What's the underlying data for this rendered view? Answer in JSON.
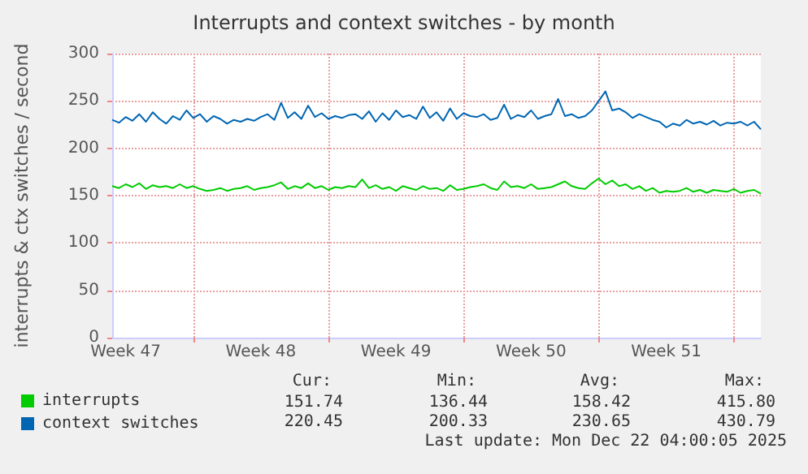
{
  "chart_data": {
    "type": "line",
    "title": "Interrupts and context switches - by month",
    "ylabel": "interrupts & ctx switches / second",
    "categories": [
      null,
      null,
      "Week 47",
      null,
      null,
      null,
      null,
      null,
      null,
      null,
      null,
      null,
      null,
      null,
      null,
      null,
      null,
      null,
      null,
      null,
      null,
      null,
      "Week 48",
      null,
      null,
      null,
      null,
      null,
      null,
      null,
      null,
      null,
      null,
      null,
      null,
      null,
      null,
      null,
      null,
      null,
      null,
      null,
      "Week 49",
      null,
      null,
      null,
      null,
      null,
      null,
      null,
      null,
      null,
      null,
      null,
      null,
      null,
      null,
      null,
      null,
      null,
      null,
      null,
      "Week 50",
      null,
      null,
      null,
      null,
      null,
      null,
      null,
      null,
      null,
      null,
      null,
      null,
      null,
      null,
      null,
      null,
      null,
      null,
      null,
      "Week 51",
      null,
      null,
      null,
      null,
      null,
      null,
      null,
      null,
      null,
      null,
      null,
      null,
      null,
      null
    ],
    "series": [
      {
        "name": "interrupts",
        "color": "#00cc00",
        "values": [
          160,
          158,
          162,
          159,
          163,
          157,
          161,
          159,
          160,
          158,
          162,
          158,
          160,
          157,
          155,
          156,
          158,
          155,
          157,
          158,
          160,
          156,
          158,
          159,
          161,
          164,
          157,
          160,
          158,
          163,
          158,
          160,
          156,
          159,
          158,
          160,
          159,
          167,
          158,
          161,
          157,
          159,
          155,
          160,
          158,
          156,
          160,
          157,
          158,
          155,
          161,
          156,
          157,
          159,
          160,
          162,
          158,
          156,
          165,
          159,
          160,
          158,
          162,
          157,
          158,
          159,
          162,
          165,
          160,
          158,
          157,
          163,
          168,
          162,
          166,
          160,
          162,
          157,
          160,
          155,
          158,
          153,
          155,
          154,
          155,
          158,
          154,
          156,
          153,
          156,
          155,
          154,
          157,
          153,
          155,
          156,
          152
        ]
      },
      {
        "name": "context switches",
        "color": "#0066b3",
        "values": [
          230,
          227,
          233,
          229,
          236,
          228,
          238,
          231,
          226,
          234,
          230,
          240,
          232,
          236,
          228,
          234,
          231,
          226,
          230,
          228,
          231,
          229,
          233,
          236,
          230,
          248,
          232,
          238,
          231,
          245,
          233,
          237,
          231,
          234,
          232,
          235,
          236,
          231,
          239,
          228,
          237,
          230,
          240,
          233,
          235,
          231,
          244,
          232,
          238,
          229,
          242,
          231,
          237,
          234,
          233,
          236,
          230,
          232,
          246,
          231,
          235,
          233,
          240,
          231,
          234,
          236,
          252,
          234,
          236,
          232,
          234,
          240,
          250,
          260,
          240,
          242,
          238,
          232,
          236,
          233,
          230,
          228,
          222,
          226,
          224,
          230,
          226,
          228,
          225,
          229,
          224,
          227,
          226,
          228,
          224,
          228,
          220
        ]
      }
    ],
    "ylim": [
      0,
      300
    ],
    "yticks": [
      0,
      50,
      100,
      150,
      200,
      250,
      300
    ],
    "grid": true,
    "legend": "bottom left",
    "marker": "none",
    "line_style": "solid",
    "annotations": [
      "Cur:",
      "Min:",
      "Avg:",
      "Max:",
      "151.74",
      "136.44",
      "158.42",
      "415.80",
      "220.45",
      "200.33",
      "230.65",
      "430.79",
      "Last update: Mon Dec 22 04:00:05 2025"
    ]
  }
}
